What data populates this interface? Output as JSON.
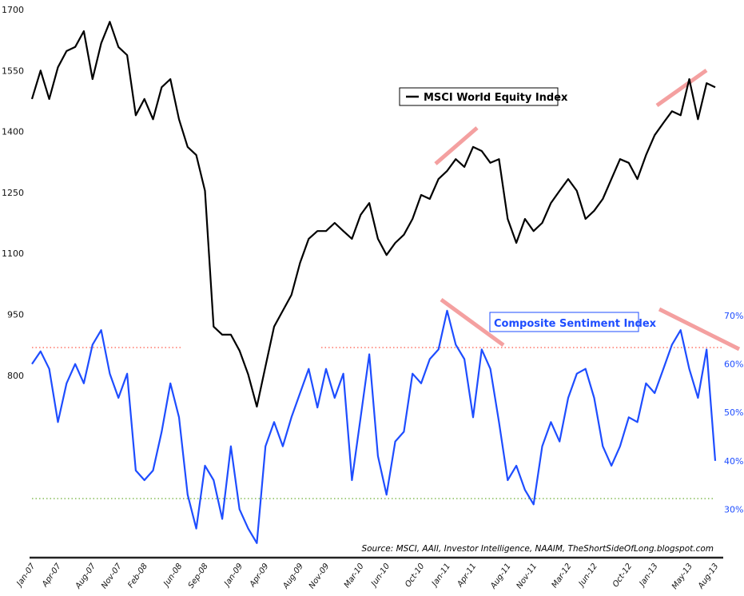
{
  "chart_data": {
    "type": "line",
    "title": "",
    "x_tick_labels": [
      "Jan-07",
      "Apr-07",
      "Aug-07",
      "Nov-07",
      "Feb-08",
      "Jun-08",
      "Sep-08",
      "Jan-09",
      "Apr-09",
      "Aug-09",
      "Nov-09",
      "Mar-10",
      "Jun-10",
      "Oct-10",
      "Jan-11",
      "Apr-11",
      "Aug-11",
      "Nov-11",
      "Mar-12",
      "Jun-12",
      "Oct-12",
      "Jan-13",
      "May-13",
      "Aug-13"
    ],
    "x_range": [
      "2007-01",
      "2013-08"
    ],
    "y_left": {
      "ticks": [
        1700,
        1550,
        1400,
        1250,
        1100,
        950,
        800
      ],
      "range": [
        650,
        1715
      ]
    },
    "y_right": {
      "ticks": [
        "70%",
        "60%",
        "50%",
        "40%",
        "30%"
      ],
      "tick_values": [
        70,
        60,
        50,
        40,
        30
      ],
      "range": [
        -198.5,
        74.5
      ]
    },
    "grid": false,
    "series": [
      {
        "name": "MSCI World Equity Index",
        "axis": "left",
        "color": "#000000",
        "x": [
          "2007-01",
          "2007-02",
          "2007-03",
          "2007-04",
          "2007-05",
          "2007-06",
          "2007-07",
          "2007-08",
          "2007-09",
          "2007-10",
          "2007-11",
          "2007-12",
          "2008-01",
          "2008-02",
          "2008-03",
          "2008-04",
          "2008-05",
          "2008-06",
          "2008-07",
          "2008-08",
          "2008-09",
          "2008-10",
          "2008-11",
          "2008-12",
          "2009-01",
          "2009-02",
          "2009-03",
          "2009-04",
          "2009-05",
          "2009-06",
          "2009-07",
          "2009-08",
          "2009-09",
          "2009-10",
          "2009-11",
          "2009-12",
          "2010-01",
          "2010-02",
          "2010-03",
          "2010-04",
          "2010-05",
          "2010-06",
          "2010-07",
          "2010-08",
          "2010-09",
          "2010-10",
          "2010-11",
          "2010-12",
          "2011-01",
          "2011-02",
          "2011-03",
          "2011-04",
          "2011-05",
          "2011-06",
          "2011-07",
          "2011-08",
          "2011-09",
          "2011-10",
          "2011-11",
          "2011-12",
          "2012-01",
          "2012-02",
          "2012-03",
          "2012-04",
          "2012-05",
          "2012-06",
          "2012-07",
          "2012-08",
          "2012-09",
          "2012-10",
          "2012-11",
          "2012-12",
          "2013-01",
          "2013-02",
          "2013-03",
          "2013-04",
          "2013-05",
          "2013-06",
          "2013-07",
          "2013-08"
        ],
        "values": [
          1480,
          1550,
          1480,
          1558,
          1598,
          1608,
          1647,
          1529,
          1617,
          1670,
          1608,
          1588,
          1440,
          1480,
          1430,
          1509,
          1529,
          1430,
          1362,
          1342,
          1254,
          920,
          900,
          900,
          861,
          802,
          723,
          822,
          920,
          959,
          998,
          1077,
          1136,
          1155,
          1155,
          1175,
          1155,
          1136,
          1195,
          1224,
          1136,
          1096,
          1126,
          1146,
          1185,
          1244,
          1234,
          1283,
          1303,
          1332,
          1313,
          1362,
          1352,
          1323,
          1332,
          1185,
          1126,
          1185,
          1155,
          1175,
          1224,
          1254,
          1283,
          1254,
          1185,
          1205,
          1234,
          1283,
          1332,
          1323,
          1283,
          1342,
          1391,
          1421,
          1450,
          1440,
          1529,
          1430,
          1519,
          1509
        ]
      },
      {
        "name": "Composite Sentiment Index",
        "axis": "right",
        "color": "#1e4dff",
        "x": [
          "2007-01",
          "2007-02",
          "2007-03",
          "2007-04",
          "2007-05",
          "2007-06",
          "2007-07",
          "2007-08",
          "2007-09",
          "2007-10",
          "2007-11",
          "2007-12",
          "2008-01",
          "2008-02",
          "2008-03",
          "2008-04",
          "2008-05",
          "2008-06",
          "2008-07",
          "2008-08",
          "2008-09",
          "2008-10",
          "2008-11",
          "2008-12",
          "2009-01",
          "2009-02",
          "2009-03",
          "2009-04",
          "2009-05",
          "2009-06",
          "2009-07",
          "2009-08",
          "2009-09",
          "2009-10",
          "2009-11",
          "2009-12",
          "2010-01",
          "2010-02",
          "2010-03",
          "2010-04",
          "2010-05",
          "2010-06",
          "2010-07",
          "2010-08",
          "2010-09",
          "2010-10",
          "2010-11",
          "2010-12",
          "2011-01",
          "2011-02",
          "2011-03",
          "2011-04",
          "2011-05",
          "2011-06",
          "2011-07",
          "2011-08",
          "2011-09",
          "2011-10",
          "2011-11",
          "2011-12",
          "2012-01",
          "2012-02",
          "2012-03",
          "2012-04",
          "2012-05",
          "2012-06",
          "2012-07",
          "2012-08",
          "2012-09",
          "2012-10",
          "2012-11",
          "2012-12",
          "2013-01",
          "2013-02",
          "2013-03",
          "2013-04",
          "2013-05",
          "2013-06",
          "2013-07",
          "2013-08"
        ],
        "values": [
          60,
          62.6,
          59,
          48,
          56,
          60,
          56,
          64,
          67,
          58,
          53,
          58,
          38,
          36,
          38,
          46,
          56,
          49,
          33,
          26,
          39,
          36,
          28,
          43,
          30,
          26,
          23,
          43,
          48,
          43,
          49,
          54,
          59,
          51,
          59,
          53,
          58,
          36,
          49,
          62,
          41,
          33,
          44,
          46,
          58,
          56,
          61,
          63,
          71,
          64,
          61,
          49,
          63,
          59,
          48,
          36,
          39,
          34,
          31,
          43,
          48,
          44,
          53,
          58,
          59,
          53,
          43,
          39,
          43,
          49,
          48,
          56,
          54,
          59,
          64,
          67,
          59,
          53,
          63,
          40
        ]
      }
    ],
    "reference_lines": [
      {
        "axis": "right",
        "value": 63.4,
        "color": "#ff5a4a",
        "style": "dotted"
      },
      {
        "axis": "right",
        "value": 32.2,
        "color": "#7ab648",
        "style": "dotted"
      }
    ],
    "annotations": {
      "trend_color": "#f4a0a0",
      "legend_equity": "MSCI World Equity Index",
      "legend_sentiment": "Composite Sentiment Index",
      "source": "Source: MSCI, AAII, Investor Intelligence, NAAIM, TheShortSideOfLong.blogspot.com"
    }
  }
}
